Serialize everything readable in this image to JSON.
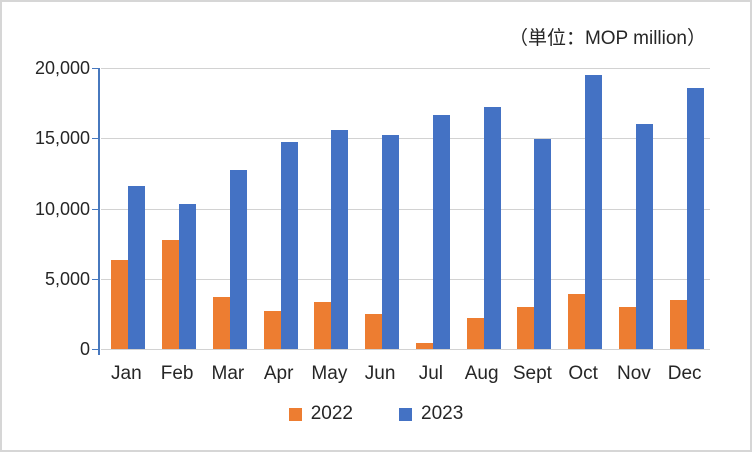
{
  "chart_data": {
    "type": "bar",
    "title": "（単位：MOP million）",
    "categories": [
      "Jan",
      "Feb",
      "Mar",
      "Apr",
      "May",
      "Jun",
      "Jul",
      "Aug",
      "Sept",
      "Oct",
      "Nov",
      "Dec"
    ],
    "series": [
      {
        "name": "2022",
        "color": "#ED7D31",
        "values": [
          6344,
          7757,
          3672,
          2677,
          3334,
          2478,
          398,
          2189,
          2962,
          3898,
          3001,
          3482
        ]
      },
      {
        "name": "2023",
        "color": "#4472C4",
        "values": [
          11580,
          10324,
          12738,
          14722,
          15565,
          15207,
          16662,
          17214,
          14937,
          19502,
          16044,
          18568
        ]
      }
    ],
    "xlabel": "",
    "ylabel": "",
    "ylim": [
      0,
      20000
    ],
    "ytick_interval": 5000,
    "ytick_labels": [
      "0",
      "5,000",
      "10,000",
      "15,000",
      "20,000"
    ],
    "grid": true,
    "legend_position": "bottom",
    "colors": {
      "gridline": "#D2D2D2",
      "axis_line": "#4778BE",
      "text": "#262626",
      "background": "#FFFFFF"
    }
  }
}
